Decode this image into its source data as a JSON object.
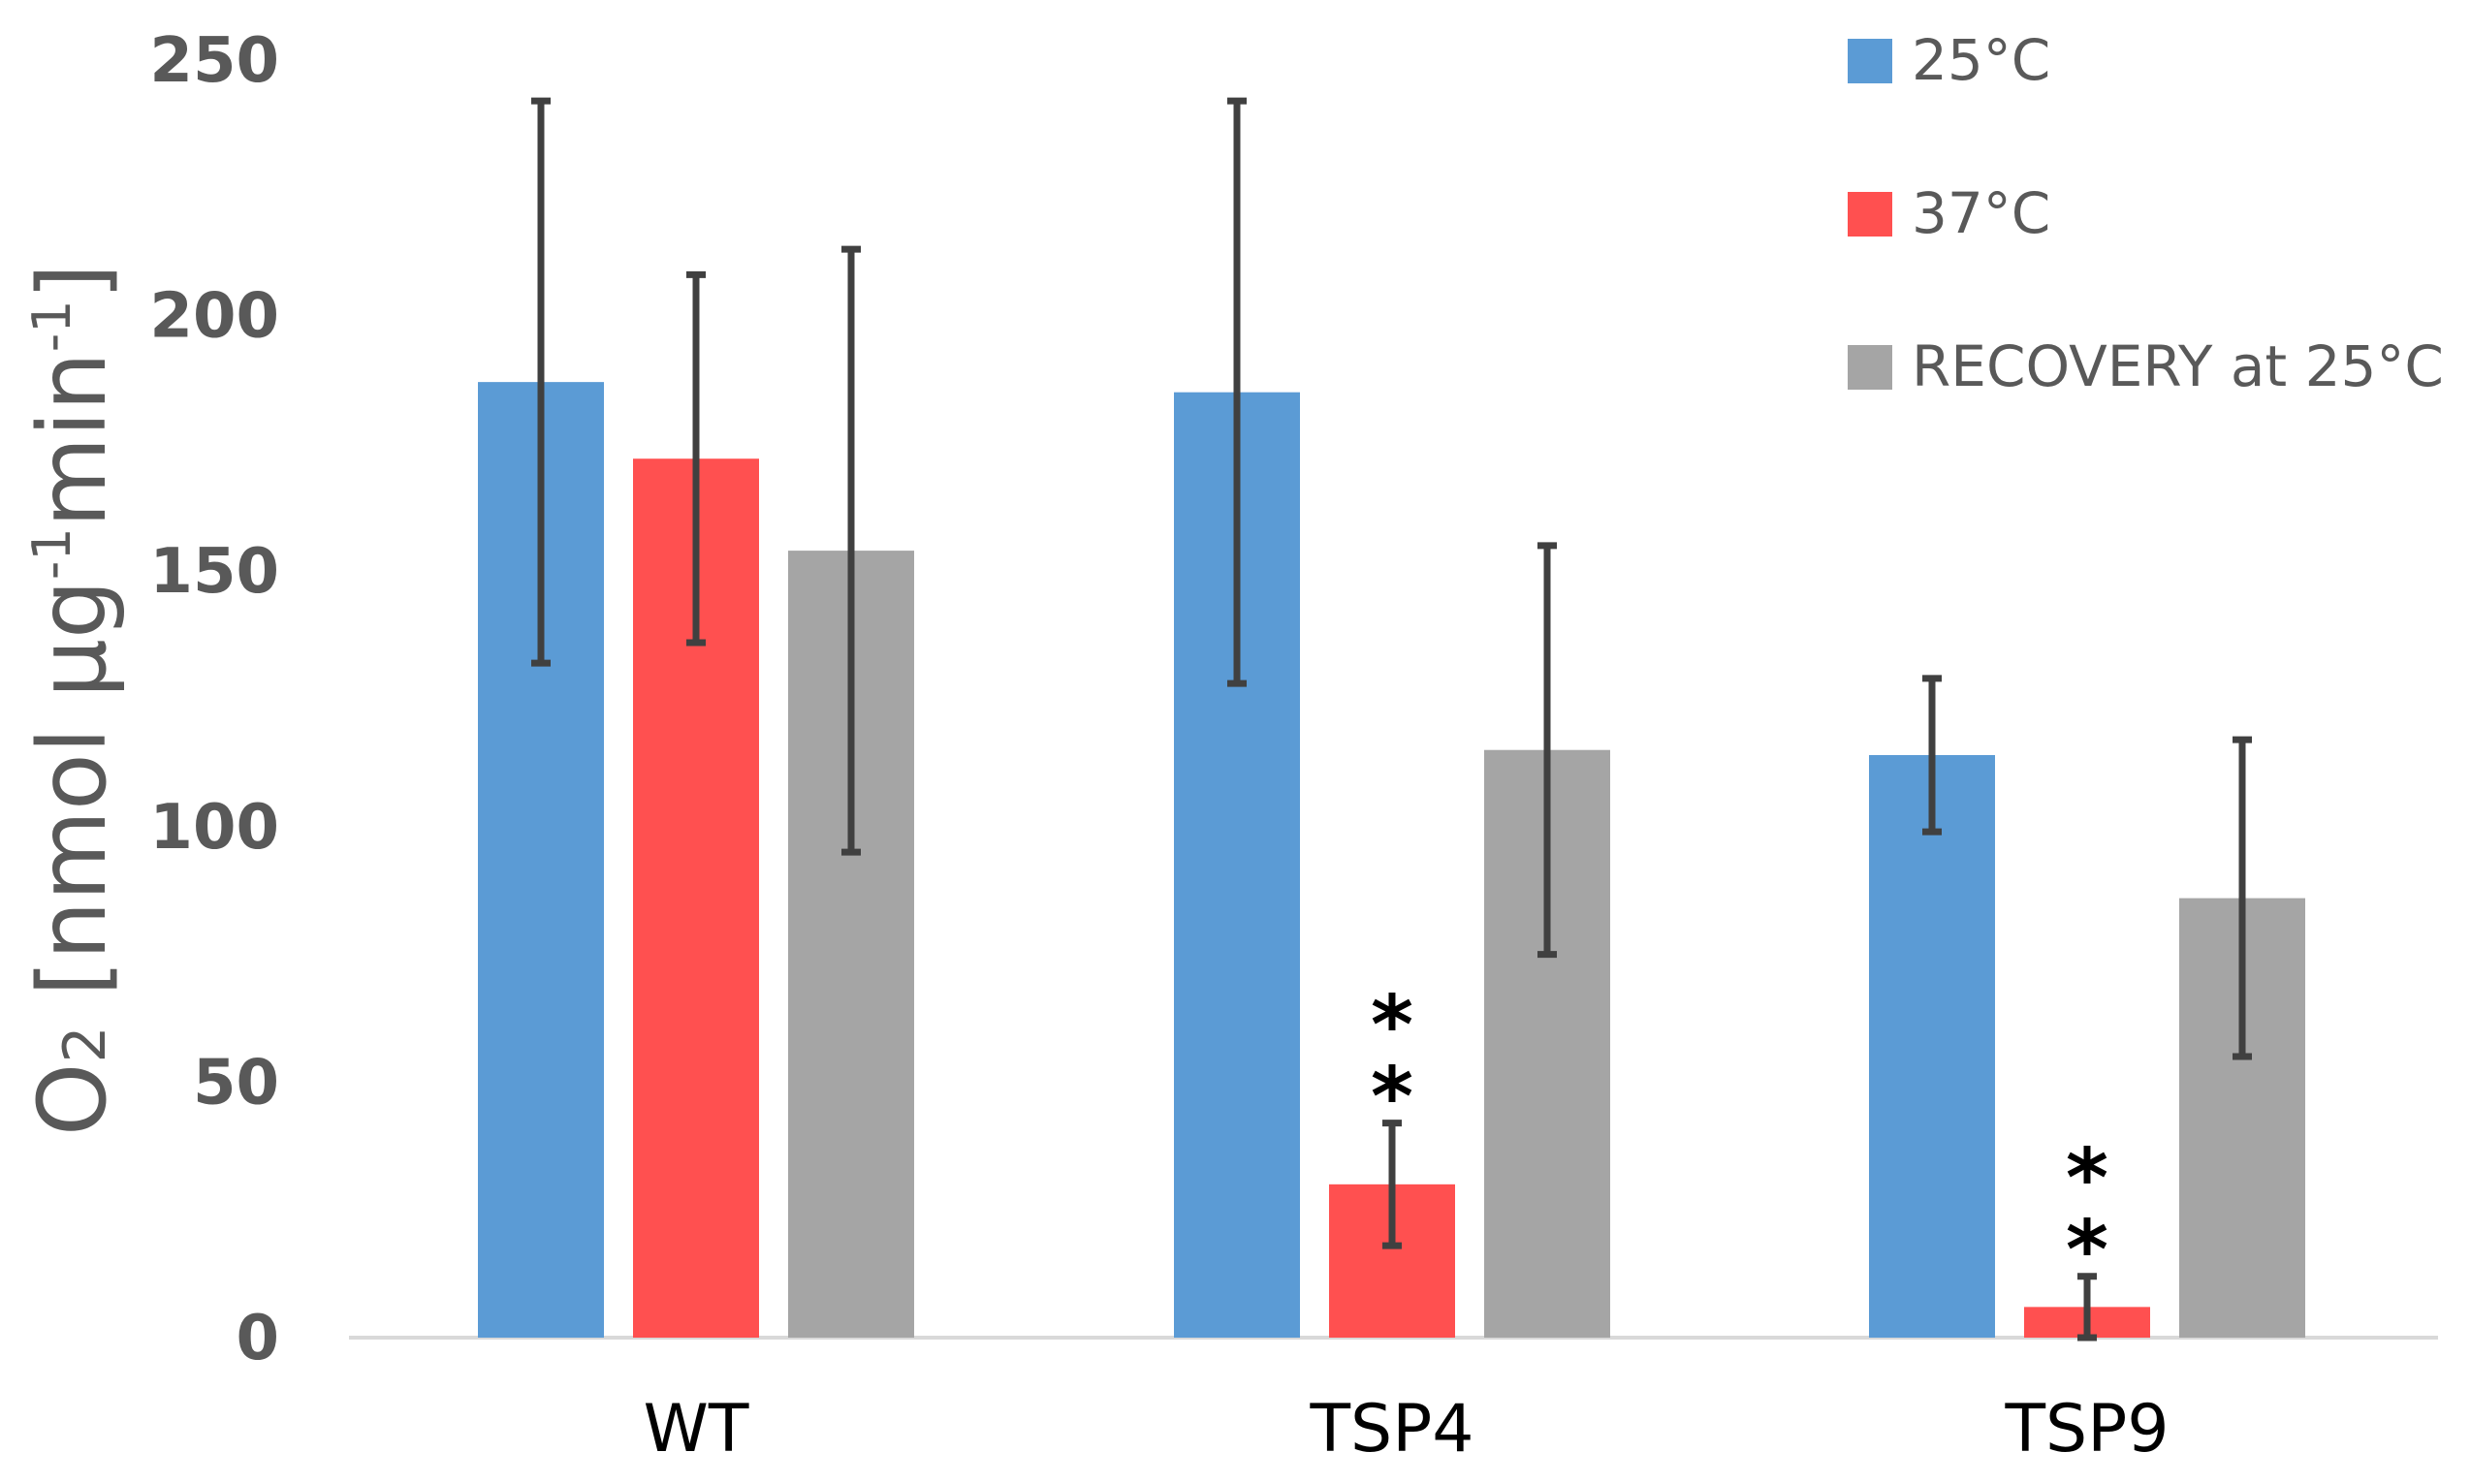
{
  "chart_data": {
    "type": "bar",
    "categories": [
      "WT",
      "TSP4",
      "TSP9"
    ],
    "series": [
      {
        "name": "25°C",
        "color": "#5B9BD5",
        "values": [
          187,
          185,
          114
        ],
        "errors": [
          55,
          57,
          15
        ]
      },
      {
        "name": "37°C",
        "color": "#FF5050",
        "values": [
          172,
          30,
          6
        ],
        "errors": [
          36,
          12,
          6
        ]
      },
      {
        "name": "RECOVERY at 25°C",
        "color": "#A5A5A5",
        "values": [
          154,
          115,
          86
        ],
        "errors": [
          59,
          40,
          31
        ]
      }
    ],
    "annotations": [
      {
        "category": "TSP4",
        "series": "37°C",
        "text": "*\n*"
      },
      {
        "category": "TSP9",
        "series": "37°C",
        "text": "*\n*"
      }
    ],
    "ylabel": {
      "main": "O",
      "sub": "2",
      "unit_prefix": " [nmol µg",
      "sup1": "-1",
      "unit_mid": "min",
      "sup2": "-1",
      "unit_end": "]"
    },
    "ylim": [
      0,
      250
    ],
    "yticks": [
      0,
      50,
      100,
      150,
      200,
      250
    ],
    "grid": false,
    "legend_position": "top-right"
  }
}
